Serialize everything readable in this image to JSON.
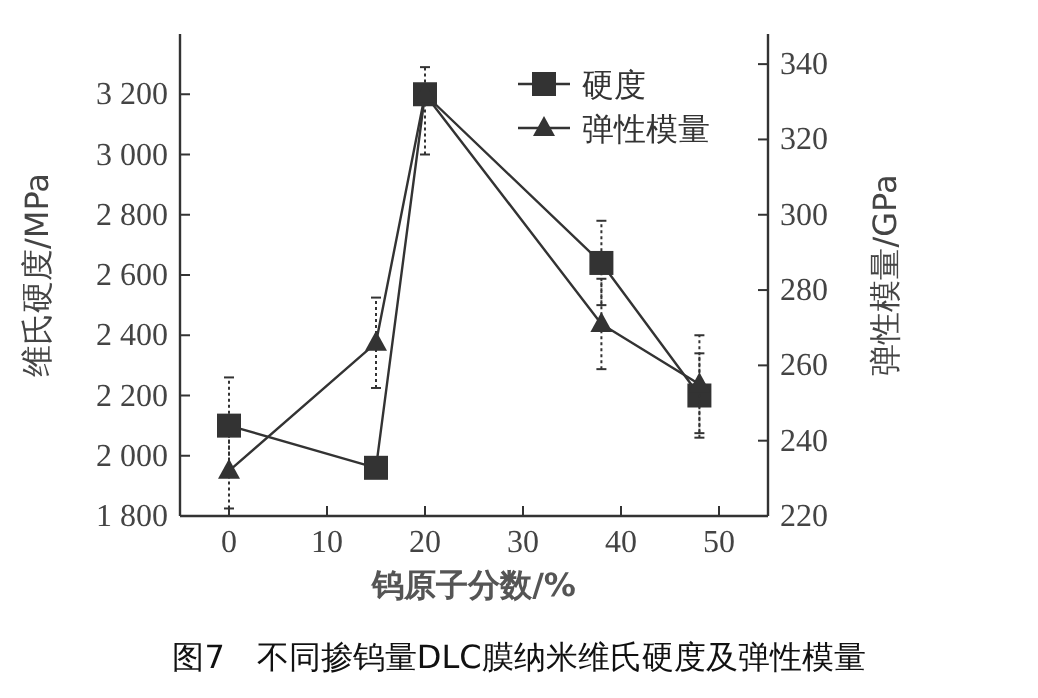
{
  "chart_data": {
    "type": "line",
    "title": "图7　不同掺钨量DLC膜纳米维氏硬度及弹性模量",
    "xlabel": "钨原子分数/%",
    "ylabel": "维氏硬度/MPa",
    "y2label": "弹性模量/GPa",
    "x": [
      0,
      15,
      20,
      38,
      48
    ],
    "series": [
      {
        "name": "硬度",
        "color": "#333333",
        "marker": "square",
        "values": [
          2100,
          1960,
          3200,
          2640,
          2200
        ],
        "errors": [
          160,
          30,
          [
            3000,
            3290
          ],
          140,
          140
        ]
      },
      {
        "name": "弹性模量",
        "color": "#333333",
        "marker": "triangle",
        "axis": "y2",
        "values": [
          232,
          266,
          332,
          271,
          255
        ],
        "errors": [
          10,
          12,
          null,
          12,
          13
        ]
      }
    ],
    "xlim": [
      -5,
      55
    ],
    "xticks": [
      0,
      10,
      20,
      30,
      40,
      50
    ],
    "ylim": [
      1800,
      3400
    ],
    "yticks": [
      {
        "value": 1800,
        "label": "1 800"
      },
      {
        "value": 2000,
        "label": "2 000"
      },
      {
        "value": 2200,
        "label": "2 200"
      },
      {
        "value": 2400,
        "label": "2 400"
      },
      {
        "value": 2600,
        "label": "2 600"
      },
      {
        "value": 2800,
        "label": "2 800"
      },
      {
        "value": 3000,
        "label": "3 000"
      },
      {
        "value": 3200,
        "label": "3 200"
      }
    ],
    "y2lim": [
      220,
      348
    ],
    "y2ticks": [
      220,
      240,
      260,
      280,
      300,
      320,
      340
    ],
    "legend": "top right",
    "grid": false
  }
}
